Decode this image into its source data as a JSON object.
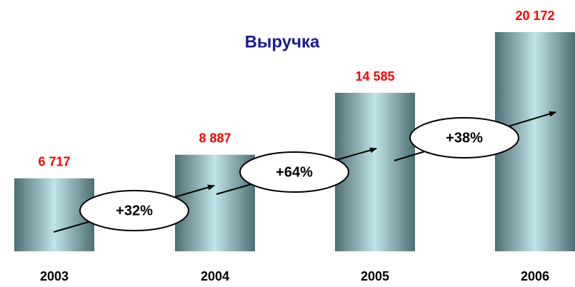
{
  "chart_data": {
    "type": "bar",
    "title": "Выручка",
    "categories": [
      "2003",
      "2004",
      "2005",
      "2006"
    ],
    "values": [
      6717,
      8887,
      14585,
      20172
    ],
    "value_labels": [
      "6 717",
      "8 887",
      "14 585",
      "20 172"
    ],
    "annotations": [
      "+32%",
      "+64%",
      "+38%"
    ]
  }
}
